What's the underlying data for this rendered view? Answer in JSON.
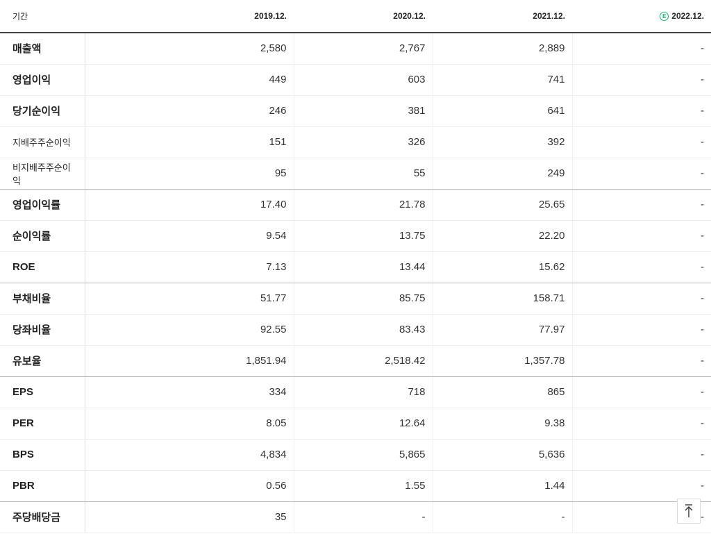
{
  "header": {
    "period_label": "기간",
    "years": [
      "2019.12.",
      "2020.12.",
      "2021.12.",
      "2022.12."
    ],
    "estimate_mark": "E"
  },
  "rows": [
    {
      "label": "매출액",
      "values": [
        "2,580",
        "2,767",
        "2,889",
        "-"
      ]
    },
    {
      "label": "영업이익",
      "values": [
        "449",
        "603",
        "741",
        "-"
      ]
    },
    {
      "label": "당기순이익",
      "values": [
        "246",
        "381",
        "641",
        "-"
      ]
    },
    {
      "label": "지배주주순이익",
      "values": [
        "151",
        "326",
        "392",
        "-"
      ]
    },
    {
      "label": "비지배주주순이익",
      "values": [
        "95",
        "55",
        "249",
        "-"
      ]
    },
    {
      "label": "영업이익률",
      "values": [
        "17.40",
        "21.78",
        "25.65",
        "-"
      ]
    },
    {
      "label": "순이익률",
      "values": [
        "9.54",
        "13.75",
        "22.20",
        "-"
      ]
    },
    {
      "label": "ROE",
      "values": [
        "7.13",
        "13.44",
        "15.62",
        "-"
      ]
    },
    {
      "label": "부채비율",
      "values": [
        "51.77",
        "85.75",
        "158.71",
        "-"
      ]
    },
    {
      "label": "당좌비율",
      "values": [
        "92.55",
        "83.43",
        "77.97",
        "-"
      ]
    },
    {
      "label": "유보율",
      "values": [
        "1,851.94",
        "2,518.42",
        "1,357.78",
        "-"
      ]
    },
    {
      "label": "EPS",
      "values": [
        "334",
        "718",
        "865",
        "-"
      ]
    },
    {
      "label": "PER",
      "values": [
        "8.05",
        "12.64",
        "9.38",
        "-"
      ]
    },
    {
      "label": "BPS",
      "values": [
        "4,834",
        "5,865",
        "5,636",
        "-"
      ]
    },
    {
      "label": "PBR",
      "values": [
        "0.56",
        "1.55",
        "1.44",
        "-"
      ]
    },
    {
      "label": "주당배당금",
      "values": [
        "35",
        "-",
        "-",
        "-"
      ]
    }
  ],
  "colors": {
    "estimate": "#1fb26b",
    "header_rule": "#444444"
  },
  "scroll_top_icon": "arrow-up-icon"
}
